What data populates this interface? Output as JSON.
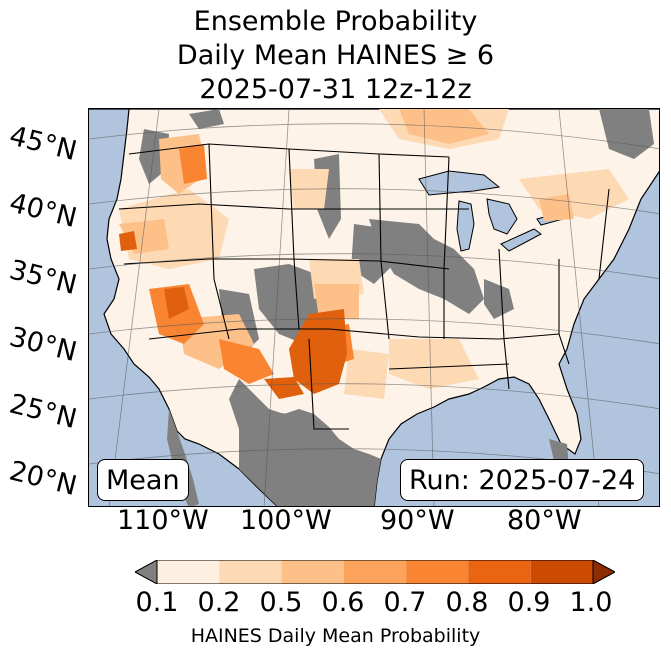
{
  "title": {
    "line1": "Ensemble Probability",
    "line2": "Daily Mean HAINES ≥ 6",
    "line3": "2025-07-31 12z-12z"
  },
  "map": {
    "latitude_labels": [
      "45°N",
      "40°N",
      "35°N",
      "30°N",
      "25°N",
      "20°N"
    ],
    "longitude_labels": [
      "110°W",
      "100°W",
      "90°W",
      "80°W"
    ],
    "stat_box": "Mean",
    "run_box": "Run: 2025-07-24",
    "colors": {
      "ocean": "#b0c4de",
      "land": "#fdf3e8",
      "below_min": "#808080",
      "borders": "#000000"
    }
  },
  "colorbar": {
    "label": "HAINES Daily Mean Probability",
    "ticks": [
      "0.1",
      "0.2",
      "0.5",
      "0.6",
      "0.7",
      "0.8",
      "0.9",
      "1.0"
    ],
    "bins": [
      {
        "from": 0.1,
        "to": 0.2,
        "color": "#fef0e1"
      },
      {
        "from": 0.2,
        "to": 0.5,
        "color": "#fdd9b4"
      },
      {
        "from": 0.5,
        "to": 0.6,
        "color": "#fdc089"
      },
      {
        "from": 0.6,
        "to": 0.7,
        "color": "#fda35c"
      },
      {
        "from": 0.7,
        "to": 0.8,
        "color": "#f98532"
      },
      {
        "from": 0.8,
        "to": 0.9,
        "color": "#ea6512"
      },
      {
        "from": 0.9,
        "to": 1.0,
        "color": "#cc4a02"
      }
    ],
    "under_color": "#808080",
    "over_color": "#8c2d04"
  }
}
